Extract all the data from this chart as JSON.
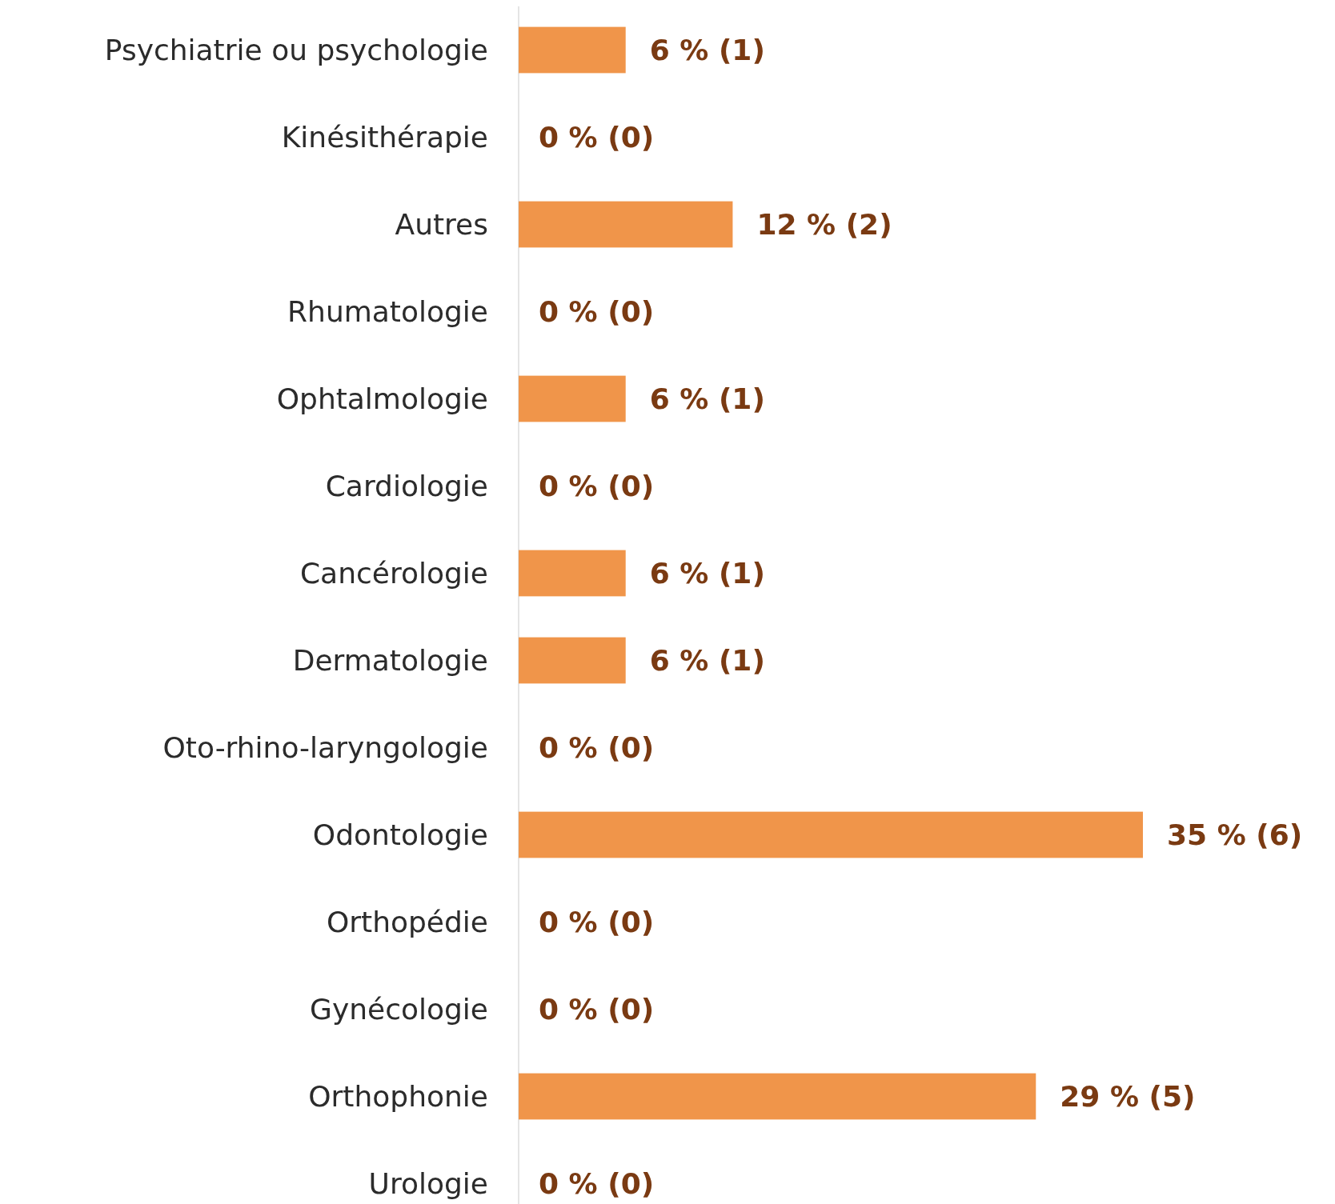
{
  "chart_data": {
    "type": "bar",
    "orientation": "horizontal",
    "tick_labels": "y",
    "color": "#f0954a",
    "categories": [
      "Psychiatrie ou psychologie",
      "Kinésithérapie",
      "Autres",
      "Rhumatologie",
      "Ophtalmologie",
      "Cardiologie",
      "Cancérologie",
      "Dermatologie",
      "Oto-rhino-laryngologie",
      "Odontologie",
      "Orthopédie",
      "Gynécologie",
      "Orthophonie",
      "Urologie"
    ],
    "values": [
      6,
      0,
      12,
      0,
      6,
      0,
      6,
      6,
      0,
      35,
      0,
      0,
      29,
      0
    ],
    "value_labels": [
      "6 % (1)",
      "0 % (0)",
      "12 % (2)",
      "0 % (0)",
      "6 % (1)",
      "0 % (0)",
      "6 % (1)",
      "6 % (1)",
      "0 % (0)",
      "35 % (6)",
      "0 % (0)",
      "0 % (0)",
      "29 % (5)",
      "0 % (0)"
    ]
  }
}
